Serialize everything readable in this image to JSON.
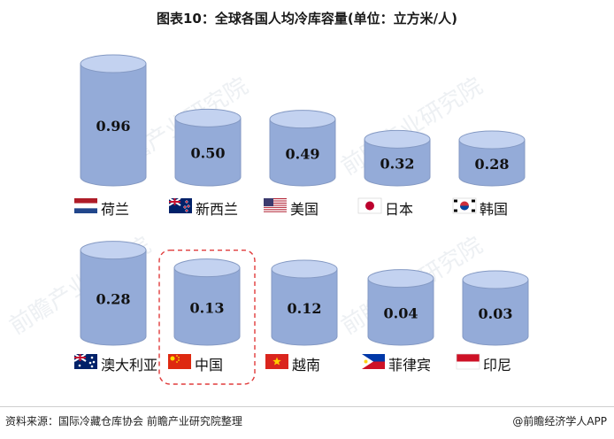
{
  "title": "图表10：全球各国人均冷库容量(单位：立方米/人)",
  "footer": {
    "source": "资料来源：国际冷藏仓库协会 前瞻产业研究院整理",
    "brand": "@前瞻经济学人APP"
  },
  "watermark": "前瞻产业研究院",
  "colors": {
    "cylinder_body": "#94abd8",
    "cylinder_top": "#c3d2f0",
    "cylinder_edge": "#8499c3",
    "highlight_border": "#e03b3b"
  },
  "chart_data": {
    "type": "bar",
    "style": "cylinder",
    "unit": "立方米/人",
    "categories": [
      "荷兰",
      "新西兰",
      "美国",
      "日本",
      "韩国",
      "澳大利亚",
      "中国",
      "越南",
      "菲律宾",
      "印尼"
    ],
    "values": [
      0.96,
      0.5,
      0.49,
      0.32,
      0.28,
      0.28,
      0.13,
      0.12,
      0.04,
      0.03
    ],
    "value_labels": [
      "0.96",
      "0.50",
      "0.49",
      "0.32",
      "0.28",
      "0.28",
      "0.13",
      "0.12",
      "0.04",
      "0.03"
    ],
    "flag_icons": [
      "netherlands-flag-icon",
      "new-zealand-flag-icon",
      "usa-flag-icon",
      "japan-flag-icon",
      "south-korea-flag-icon",
      "australia-flag-icon",
      "china-flag-icon",
      "vietnam-flag-icon",
      "philippines-flag-icon",
      "indonesia-flag-icon"
    ],
    "highlighted": "中国",
    "layout_rows": 2
  }
}
